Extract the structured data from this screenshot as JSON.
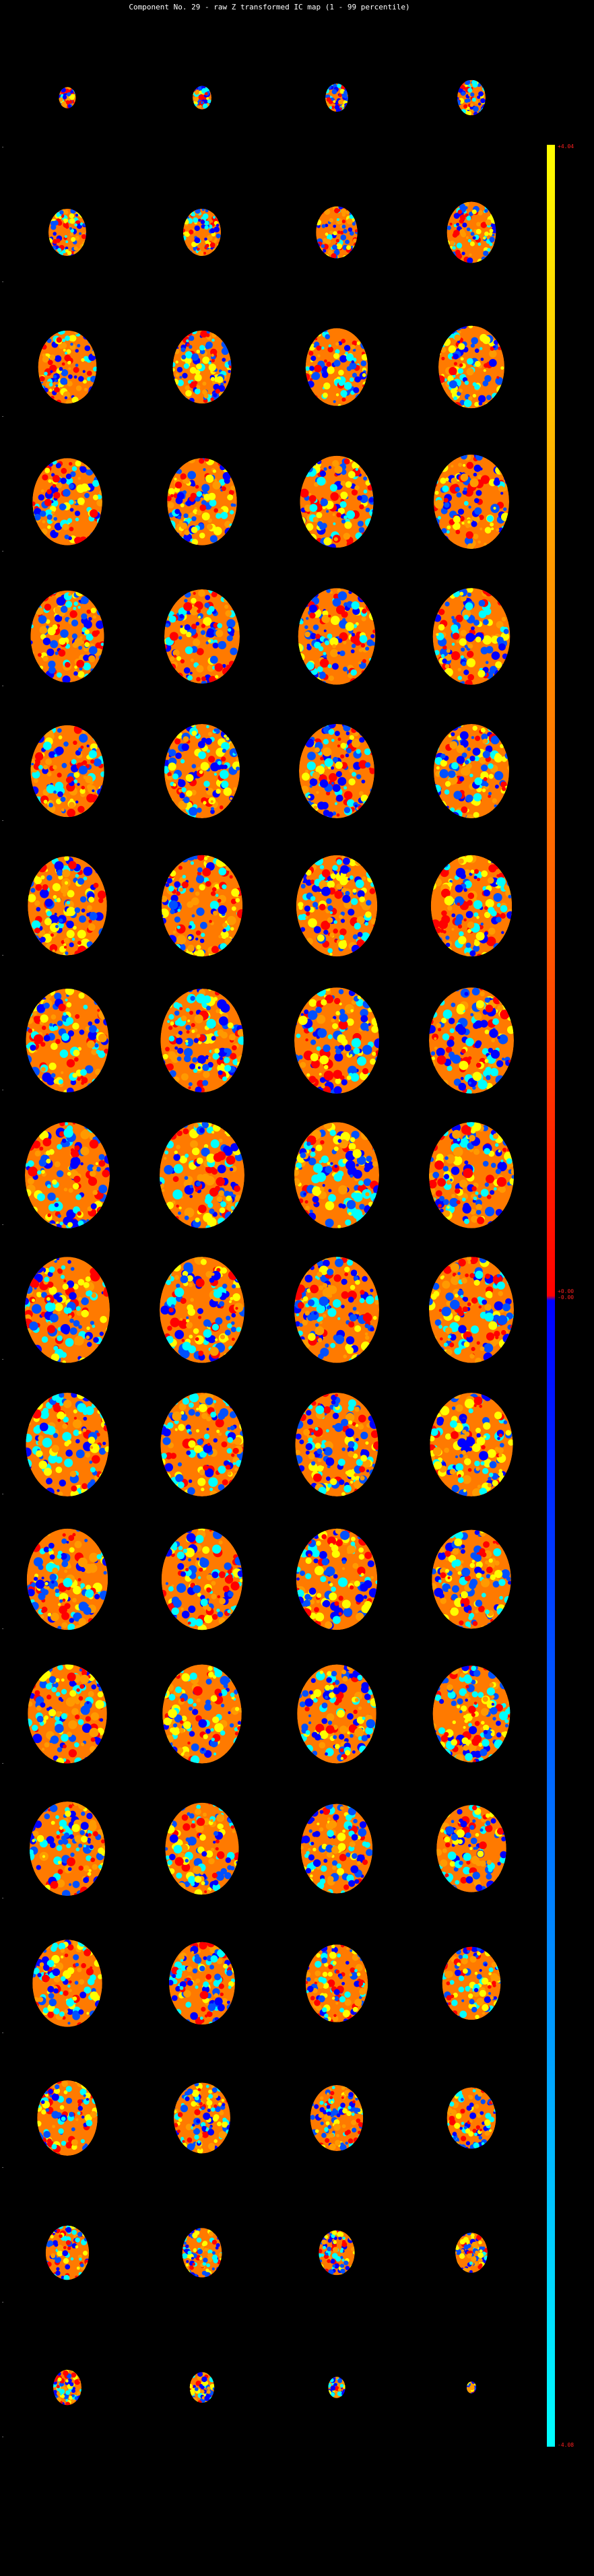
{
  "title": "Component No. 29 - raw Z transformed IC map (1 - 99 percentile)",
  "colorbar": {
    "max_label": "+4.04",
    "mid_pos_label": "+0.00",
    "mid_neg_label": "-0.00",
    "min_label": "-4.08",
    "colors_positive": [
      "#ffff00",
      "#ff9a00",
      "#ff0000"
    ],
    "colors_negative": [
      "#0000ff",
      "#0050ff",
      "#00ffff"
    ]
  },
  "grid": {
    "rows": 18,
    "cols": 4,
    "slice_scale": [
      0.18,
      0.2,
      0.24,
      0.3,
      0.4,
      0.4,
      0.44,
      0.52,
      0.62,
      0.62,
      0.66,
      0.7,
      0.74,
      0.74,
      0.78,
      0.8,
      0.78,
      0.8,
      0.82,
      0.82,
      0.78,
      0.8,
      0.8,
      0.8,
      0.84,
      0.86,
      0.86,
      0.86,
      0.88,
      0.88,
      0.9,
      0.9,
      0.9,
      0.9,
      0.9,
      0.9,
      0.9,
      0.9,
      0.9,
      0.9,
      0.88,
      0.88,
      0.88,
      0.88,
      0.86,
      0.86,
      0.86,
      0.84,
      0.84,
      0.84,
      0.84,
      0.82,
      0.8,
      0.78,
      0.76,
      0.74,
      0.74,
      0.7,
      0.66,
      0.62,
      0.64,
      0.6,
      0.56,
      0.52,
      0.46,
      0.42,
      0.38,
      0.34,
      0.3,
      0.26,
      0.18,
      0.1
    ]
  }
}
